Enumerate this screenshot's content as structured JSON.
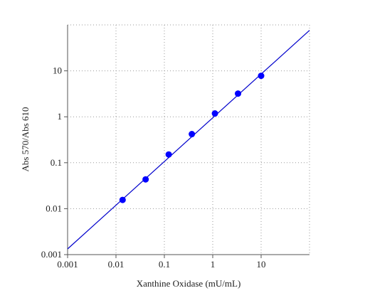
{
  "chart_data": {
    "type": "scatter",
    "x_label": "Xanthine Oxidase (mU/mL)",
    "y_label": "Abs 570/Abs 610",
    "x": [
      0.0137,
      0.041,
      0.123,
      0.37,
      1.11,
      3.33,
      10
    ],
    "series": [
      {
        "color": "#0000ff",
        "values": [
          0.0155,
          0.0434,
          0.151,
          0.42,
          1.18,
          3.2,
          7.8
        ]
      }
    ],
    "fit": {
      "x": [
        0.001,
        100
      ],
      "y": [
        0.00133,
        76
      ],
      "color": "#0000cc"
    },
    "xlim": [
      0.001,
      100
    ],
    "ylim": [
      0.001,
      100
    ],
    "xticks": [
      0.001,
      0.01,
      0.1,
      1,
      10
    ],
    "yticks": [
      0.001,
      0.01,
      0.1,
      1,
      10
    ],
    "xscale": "log",
    "yscale": "log",
    "grid": true
  }
}
